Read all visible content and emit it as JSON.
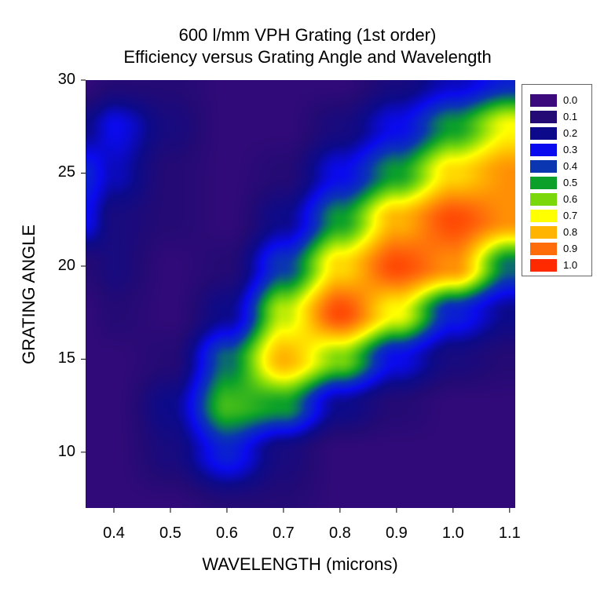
{
  "chart_data": {
    "type": "heatmap",
    "title": [
      "600 l/mm VPH Grating (1st order)",
      "Efficiency versus Grating Angle and Wavelength"
    ],
    "xlabel": "WAVELENGTH (microns)",
    "ylabel": "GRATING ANGLE",
    "xlim": [
      0.35,
      1.11
    ],
    "ylim": [
      7,
      30
    ],
    "xticks": [
      "0.4",
      "0.5",
      "0.6",
      "0.7",
      "0.8",
      "0.9",
      "1.0",
      "1.1"
    ],
    "yticks": [
      "10",
      "15",
      "20",
      "25",
      "30"
    ],
    "legend": {
      "placement": "right",
      "levels": [
        "0.0",
        "0.1",
        "0.2",
        "0.3",
        "0.4",
        "0.5",
        "0.6",
        "0.7",
        "0.8",
        "0.9",
        "1.0"
      ],
      "colors": [
        "#3c0a7c",
        "#240a74",
        "#0c0a8a",
        "#0a0aee",
        "#0a36b2",
        "#0aa02a",
        "#7ad80a",
        "#ffff00",
        "#ffb400",
        "#ff6c0a",
        "#ff2a00"
      ]
    },
    "x": [
      0.35,
      0.4,
      0.5,
      0.6,
      0.7,
      0.8,
      0.9,
      1.0,
      1.1
    ],
    "y": [
      7,
      10,
      12.5,
      15,
      17.5,
      20,
      22.5,
      25,
      27.5,
      30
    ],
    "z": [
      [
        0.05,
        0.05,
        0.05,
        0.1,
        0.1,
        0.05,
        0.05,
        0.05,
        0.05
      ],
      [
        0.05,
        0.05,
        0.15,
        0.35,
        0.15,
        0.05,
        0.05,
        0.05,
        0.05
      ],
      [
        0.05,
        0.05,
        0.2,
        0.55,
        0.5,
        0.2,
        0.1,
        0.05,
        0.05
      ],
      [
        0.05,
        0.05,
        0.1,
        0.45,
        0.8,
        0.6,
        0.3,
        0.15,
        0.1
      ],
      [
        0.05,
        0.1,
        0.05,
        0.2,
        0.65,
        0.95,
        0.7,
        0.35,
        0.2
      ],
      [
        0.1,
        0.15,
        0.05,
        0.1,
        0.4,
        0.75,
        0.95,
        0.85,
        0.45
      ],
      [
        0.3,
        0.15,
        0.1,
        0.05,
        0.2,
        0.5,
        0.8,
        0.95,
        0.85
      ],
      [
        0.35,
        0.25,
        0.1,
        0.05,
        0.1,
        0.3,
        0.5,
        0.75,
        0.85
      ],
      [
        0.2,
        0.3,
        0.15,
        0.05,
        0.05,
        0.15,
        0.3,
        0.5,
        0.7
      ],
      [
        0.05,
        0.1,
        0.1,
        0.05,
        0.05,
        0.05,
        0.15,
        0.25,
        0.35
      ]
    ]
  }
}
